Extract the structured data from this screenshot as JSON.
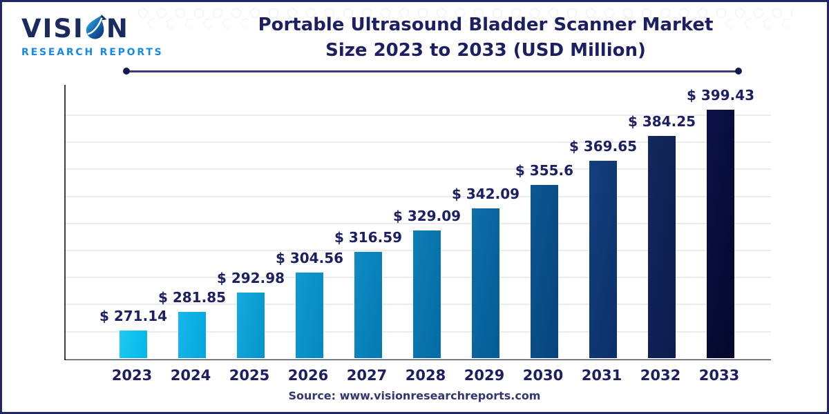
{
  "brand": {
    "name_prefix": "VISI",
    "name_suffix": "N",
    "tagline": "RESEARCH REPORTS"
  },
  "header": {
    "title_line1": "Portable Ultrasound Bladder Scanner Market",
    "title_line2": "Size 2023 to 2033 (USD Million)"
  },
  "footer": {
    "source": "Source: www.visionresearchreports.com"
  },
  "theme": {
    "border-color": "#212566",
    "title-color": "#1c2063",
    "label-color": "#1c2063",
    "source-color": "#333673",
    "axis-color": "#15152c",
    "yaxis-color": "#3c3c52",
    "grid-color": "#eaeaef",
    "divider-color": "#3d3c7a",
    "dot-color": "#141a4e",
    "brand-navy": "#1c2a5e",
    "brand-blue": "#158ae8"
  },
  "chart_data": {
    "type": "bar",
    "title": "Portable Ultrasound Bladder Scanner Market Size 2023 to 2033 (USD Million)",
    "unit": "USD Million",
    "xlabel": "",
    "ylabel": "",
    "categories": [
      "2023",
      "2024",
      "2025",
      "2026",
      "2027",
      "2028",
      "2029",
      "2030",
      "2031",
      "2032",
      "2033"
    ],
    "values": [
      271.14,
      281.85,
      292.98,
      304.56,
      316.59,
      329.09,
      342.09,
      355.6,
      369.65,
      384.25,
      399.43
    ],
    "labels": [
      "$ 271.14",
      "$ 281.85",
      "$ 292.98",
      "$ 304.56",
      "$ 316.59",
      "$ 329.09",
      "$ 342.09",
      "$ 355.6",
      "$ 369.65",
      "$ 384.25",
      "$ 399.43"
    ],
    "ylim": [
      255,
      415
    ],
    "grid": true,
    "gridline_count": 10,
    "legend": "none",
    "bar_colors": [
      [
        "#1fc9f3",
        "#02b7e8"
      ],
      [
        "#17b8ea",
        "#04a5d9"
      ],
      [
        "#17a9dd",
        "#0495cb"
      ],
      [
        "#109ad0",
        "#0489bf"
      ],
      [
        "#0f8bc3",
        "#047ab1"
      ],
      [
        "#0e7db6",
        "#056ba3"
      ],
      [
        "#0d6ea9",
        "#045c95"
      ],
      [
        "#0c5791",
        "#07447e"
      ],
      [
        "#13407e",
        "#0c2f68"
      ],
      [
        "#13285c",
        "#0c1c4e"
      ],
      [
        "#0c1349",
        "#03072b"
      ]
    ]
  }
}
